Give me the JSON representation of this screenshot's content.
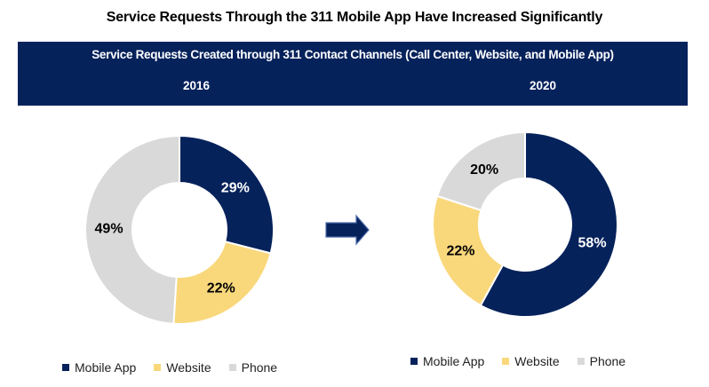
{
  "header": {
    "title": "Service Requests Through the 311 Mobile App Have Increased Significantly",
    "subtitle": "Service Requests Created through 311 Contact Channels (Call Center, Website, and Mobile App)"
  },
  "colors": {
    "banner": "#06225b",
    "mobile_app": "#06225b",
    "website": "#f9d87c",
    "phone": "#d9d9d9"
  },
  "arrow": {
    "icon": "right-arrow-icon"
  },
  "chart_data": [
    {
      "type": "pie",
      "variant": "donut",
      "title": "2016",
      "categories": [
        "Mobile App",
        "Website",
        "Phone"
      ],
      "values": [
        29,
        22,
        49
      ],
      "labels": [
        "29%",
        "22%",
        "49%"
      ],
      "legend": [
        "Mobile App",
        "Website",
        "Phone"
      ],
      "legend_position": "bottom"
    },
    {
      "type": "pie",
      "variant": "donut",
      "title": "2020",
      "categories": [
        "Mobile App",
        "Website",
        "Phone"
      ],
      "values": [
        58,
        22,
        20
      ],
      "labels": [
        "58%",
        "22%",
        "20%"
      ],
      "legend": [
        "Mobile App",
        "Website",
        "Phone"
      ],
      "legend_position": "bottom"
    }
  ]
}
